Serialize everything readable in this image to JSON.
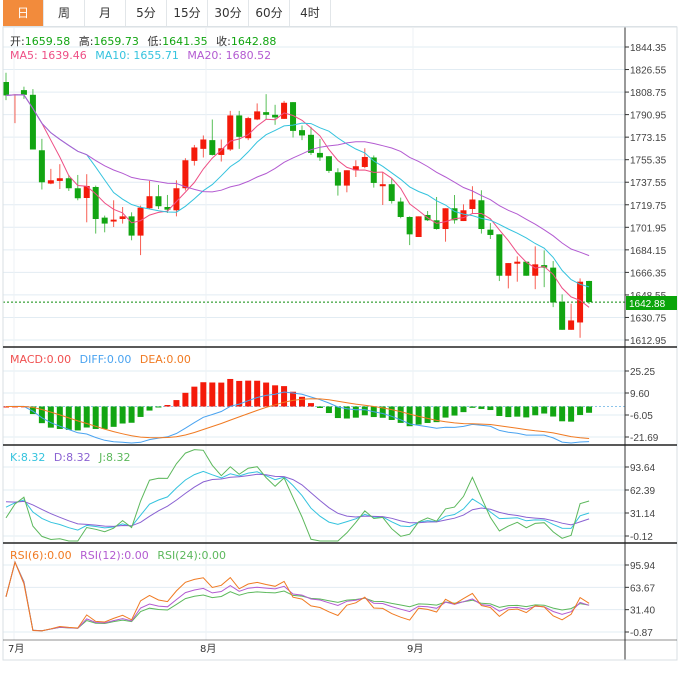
{
  "tabs": [
    {
      "label": "日",
      "active": true
    },
    {
      "label": "周"
    },
    {
      "label": "月"
    },
    {
      "label": "5分"
    },
    {
      "label": "15分"
    },
    {
      "label": "30分"
    },
    {
      "label": "60分"
    },
    {
      "label": "4时"
    }
  ],
  "ohlc_legend": {
    "open_label": "开:",
    "open": "1659.58",
    "high_label": "高:",
    "high": "1659.73",
    "low_label": "低:",
    "low": "1641.35",
    "close_label": "收:",
    "close": "1642.88"
  },
  "ma_legend": {
    "ma5": "MA5: 1639.46",
    "ma10": "MA10: 1655.71",
    "ma20": "MA20: 1680.52"
  },
  "macd_legend": {
    "macd": "MACD:0.00",
    "diff": "DIFF:0.00",
    "dea": "DEA:0.00"
  },
  "kdj_legend": {
    "k": "K:8.32",
    "d": "D:8.32",
    "j": "J:8.32"
  },
  "rsi_legend": {
    "rsi6": "RSI(6):0.00",
    "rsi12": "RSI(12):0.00",
    "rsi24": "RSI(24):0.00"
  },
  "current_price": "1642.88",
  "colors": {
    "up": "#f41a0a",
    "down": "#12a512",
    "ma5": "#ee4f85",
    "ma10": "#35c3de",
    "ma20": "#b35bd1",
    "diff": "#4aa3f0",
    "dea": "#f07a22",
    "k": "#35c3de",
    "d": "#8a62d2",
    "j": "#5cb85c",
    "rsi6": "#f07a22",
    "rsi12": "#b35bd1",
    "rsi24": "#5cb85c",
    "active_tab": "#f28b3c"
  },
  "chart_data": {
    "type": "candlestick",
    "x_labels": [
      "7月",
      "8月",
      "9月"
    ],
    "price_axis": {
      "ticks": [
        "1844.35",
        "1826.55",
        "1808.75",
        "1790.95",
        "1773.15",
        "1755.35",
        "1737.55",
        "1719.75",
        "1701.95",
        "1684.15",
        "1666.35",
        "1648.55",
        "1630.75",
        "1612.95"
      ],
      "range": [
        1612.95,
        1844.35
      ]
    },
    "macd_axis": {
      "ticks": [
        "25.25",
        "9.60",
        "-6.05",
        "-21.69"
      ],
      "range": [
        -21.69,
        25.25
      ]
    },
    "kdj_axis": {
      "ticks": [
        "93.64",
        "62.39",
        "31.14",
        "-0.12"
      ],
      "range": [
        -0.12,
        93.64
      ]
    },
    "rsi_axis": {
      "ticks": [
        "95.94",
        "63.67",
        "31.40",
        "-0.87"
      ],
      "range": [
        -0.87,
        95.94
      ]
    },
    "candles": [
      [
        1816.7,
        1824.0,
        1802.4,
        1806.1
      ],
      [
        1806.6,
        1807.0,
        1784.2,
        1806.9
      ],
      [
        1810.3,
        1813.0,
        1803.4,
        1806.6
      ],
      [
        1806.6,
        1811.1,
        1763.4,
        1763.4
      ],
      [
        1762.8,
        1771.8,
        1731.8,
        1737.5
      ],
      [
        1736.5,
        1748.1,
        1736.0,
        1739.1
      ],
      [
        1738.6,
        1751.8,
        1732.2,
        1740.7
      ],
      [
        1740.7,
        1743.3,
        1730.7,
        1732.8
      ],
      [
        1732.8,
        1743.3,
        1723.3,
        1724.9
      ],
      [
        1725.1,
        1743.9,
        1705.9,
        1734.6
      ],
      [
        1733.8,
        1734.9,
        1697.0,
        1708.5
      ],
      [
        1709.6,
        1711.2,
        1698.0,
        1704.9
      ],
      [
        1706.5,
        1723.3,
        1702.2,
        1708.0
      ],
      [
        1708.5,
        1718.0,
        1704.9,
        1710.6
      ],
      [
        1710.6,
        1713.8,
        1691.7,
        1695.4
      ],
      [
        1695.4,
        1719.1,
        1680.0,
        1717.5
      ],
      [
        1717.0,
        1738.6,
        1716.4,
        1726.5
      ],
      [
        1726.5,
        1735.4,
        1716.4,
        1718.6
      ],
      [
        1718.0,
        1727.5,
        1713.3,
        1715.9
      ],
      [
        1715.4,
        1739.1,
        1710.6,
        1732.8
      ],
      [
        1732.8,
        1756.5,
        1731.0,
        1754.9
      ],
      [
        1754.4,
        1767.0,
        1750.7,
        1765.0
      ],
      [
        1763.9,
        1774.5,
        1757.1,
        1771.3
      ],
      [
        1770.8,
        1787.1,
        1758.7,
        1759.1
      ],
      [
        1759.1,
        1771.3,
        1753.9,
        1764.4
      ],
      [
        1763.4,
        1793.9,
        1762.3,
        1790.3
      ],
      [
        1790.3,
        1793.9,
        1763.9,
        1773.4
      ],
      [
        1772.3,
        1789.2,
        1770.8,
        1788.2
      ],
      [
        1787.1,
        1799.8,
        1786.6,
        1793.5
      ],
      [
        1792.9,
        1807.1,
        1787.1,
        1790.8
      ],
      [
        1790.8,
        1798.7,
        1782.9,
        1788.7
      ],
      [
        1787.6,
        1801.8,
        1787.6,
        1800.3
      ],
      [
        1800.8,
        1800.8,
        1772.9,
        1778.1
      ],
      [
        1778.7,
        1782.4,
        1770.8,
        1774.5
      ],
      [
        1775.0,
        1781.3,
        1759.1,
        1760.7
      ],
      [
        1760.7,
        1771.8,
        1754.4,
        1757.1
      ],
      [
        1758.1,
        1758.1,
        1744.9,
        1746.5
      ],
      [
        1745.4,
        1748.6,
        1727.0,
        1734.9
      ],
      [
        1734.9,
        1747.0,
        1729.6,
        1747.0
      ],
      [
        1747.0,
        1754.9,
        1741.7,
        1750.2
      ],
      [
        1749.6,
        1764.4,
        1748.6,
        1757.5
      ],
      [
        1757.1,
        1758.7,
        1733.3,
        1737.0
      ],
      [
        1734.4,
        1745.4,
        1719.6,
        1736.0
      ],
      [
        1736.0,
        1740.7,
        1720.7,
        1722.7
      ],
      [
        1722.3,
        1725.4,
        1709.1,
        1710.1
      ],
      [
        1710.1,
        1710.6,
        1687.9,
        1696.4
      ],
      [
        1694.3,
        1710.6,
        1694.3,
        1710.6
      ],
      [
        1711.7,
        1714.8,
        1706.9,
        1707.5
      ],
      [
        1707.5,
        1725.9,
        1700.1,
        1700.6
      ],
      [
        1700.6,
        1717.0,
        1690.6,
        1717.0
      ],
      [
        1717.0,
        1727.5,
        1704.9,
        1707.5
      ],
      [
        1706.9,
        1720.1,
        1706.9,
        1715.4
      ],
      [
        1716.4,
        1734.4,
        1712.8,
        1723.9
      ],
      [
        1723.3,
        1731.2,
        1697.0,
        1700.6
      ],
      [
        1700.1,
        1705.3,
        1692.7,
        1695.9
      ],
      [
        1696.4,
        1696.4,
        1659.5,
        1663.7
      ],
      [
        1663.7,
        1673.7,
        1653.7,
        1673.7
      ],
      [
        1673.2,
        1679.0,
        1659.0,
        1674.8
      ],
      [
        1674.8,
        1674.8,
        1663.7,
        1663.7
      ],
      [
        1663.7,
        1686.9,
        1653.1,
        1672.7
      ],
      [
        1672.1,
        1683.7,
        1654.7,
        1670.1
      ],
      [
        1670.1,
        1675.3,
        1638.9,
        1642.6
      ],
      [
        1643.2,
        1649.0,
        1621.0,
        1621.0
      ],
      [
        1621.0,
        1641.6,
        1621.0,
        1628.4
      ],
      [
        1626.8,
        1661.6,
        1614.7,
        1659.0
      ],
      [
        1659.58,
        1659.73,
        1641.35,
        1642.88
      ]
    ],
    "candle_format": [
      "open",
      "high",
      "low",
      "close"
    ],
    "overlays": [
      "MA5",
      "MA10",
      "MA20"
    ],
    "indicators": [
      "MACD",
      "KDJ",
      "RSI"
    ]
  }
}
